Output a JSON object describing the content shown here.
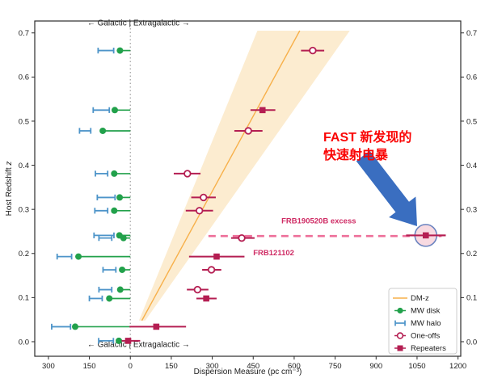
{
  "chart_data": {
    "type": "scatter",
    "title": "",
    "xlabel": "Dispersion Measure (pc cm⁻³)",
    "ylabel_main": "Host Redshift ",
    "ylabel_italic": "z",
    "xlim": [
      -350,
      1210
    ],
    "ylim": [
      -0.033,
      0.727
    ],
    "x_ticks": [
      {
        "value": -300,
        "label": "300"
      },
      {
        "value": -150,
        "label": "150"
      },
      {
        "value": 0,
        "label": "0"
      },
      {
        "value": 150,
        "label": "150"
      },
      {
        "value": 300,
        "label": "300"
      },
      {
        "value": 450,
        "label": "450"
      },
      {
        "value": 600,
        "label": "600"
      },
      {
        "value": 750,
        "label": "750"
      },
      {
        "value": 900,
        "label": "900"
      },
      {
        "value": 1050,
        "label": "1050"
      },
      {
        "value": 1200,
        "label": "1200"
      }
    ],
    "y_ticks": [
      {
        "value": 0.0,
        "label": "0.0"
      },
      {
        "value": 0.1,
        "label": "0.1"
      },
      {
        "value": 0.2,
        "label": "0.2"
      },
      {
        "value": 0.3,
        "label": "0.3"
      },
      {
        "value": 0.4,
        "label": "0.4"
      },
      {
        "value": 0.5,
        "label": "0.5"
      },
      {
        "value": 0.6,
        "label": "0.6"
      },
      {
        "value": 0.7,
        "label": "0.7"
      }
    ],
    "grid": false,
    "region_annotation": {
      "text": "←  Galactic | Extragalactic  →",
      "x_dm": 30,
      "top_z": 0.717,
      "bottom_z": -0.012
    },
    "divider_line": {
      "x_dm": 0,
      "style": "dotted",
      "color": "#9e9e9e"
    },
    "dm_z_relation": {
      "center_slope_dm_per_z": 880,
      "band_low_slope": 660,
      "band_high_slope": 1140,
      "z_range": [
        0.048,
        0.705
      ],
      "line_color": "#f7b04a",
      "band_color": "#fcecd0"
    },
    "dashed_line": {
      "z": 0.2395,
      "dm_start": 286,
      "dm_end": 1140,
      "color": "#ed6f9a",
      "label": "FRB190520B excess",
      "label_dm": 690,
      "label_z": 0.268
    },
    "point_labels": [
      {
        "text": "FRB121102",
        "dm": 450,
        "z": 0.196,
        "anchor": "start"
      }
    ],
    "frbs": [
      {
        "z": 0.66,
        "halo": [
          -118,
          -61
        ],
        "disk": -38,
        "egal": {
          "dm": 668,
          "lo": 625,
          "hi": 710,
          "kind": "oneoff"
        }
      },
      {
        "z": 0.525,
        "halo": [
          -136,
          -77
        ],
        "disk": -57,
        "egal": {
          "dm": 484,
          "lo": 440,
          "hi": 531,
          "kind": "repeater"
        }
      },
      {
        "z": 0.478,
        "halo": [
          -186,
          -145
        ],
        "disk": -101,
        "egal": {
          "dm": 432,
          "lo": 381,
          "hi": 484,
          "kind": "oneoff"
        }
      },
      {
        "z": 0.381,
        "halo": [
          -128,
          -83
        ],
        "disk": -59,
        "egal": {
          "dm": 209,
          "lo": 159,
          "hi": 257,
          "kind": "oneoff"
        }
      },
      {
        "z": 0.327,
        "halo": [
          -121,
          -56
        ],
        "disk": -39,
        "egal": {
          "dm": 268,
          "lo": 223,
          "hi": 313,
          "kind": "oneoff"
        }
      },
      {
        "z": 0.297,
        "halo": [
          -130,
          -83
        ],
        "disk": -59,
        "egal": {
          "dm": 253,
          "lo": 203,
          "hi": 303,
          "kind": "oneoff"
        }
      },
      {
        "z": 0.241,
        "halo": [
          -133,
          -60
        ],
        "disk": -40,
        "egal": {
          "dm": 1082,
          "lo": 1010,
          "hi": 1155,
          "kind": "repeater",
          "circled": true,
          "name": "FRB190520B"
        }
      },
      {
        "z": 0.235,
        "halo": [
          -115,
          -68
        ],
        "disk": -25,
        "egal": {
          "dm": 408,
          "lo": 369,
          "hi": 455,
          "kind": "oneoff"
        }
      },
      {
        "z": 0.193,
        "halo": [
          -268,
          -215
        ],
        "disk": -190,
        "egal": {
          "dm": 316,
          "lo": 215,
          "hi": 418,
          "kind": "repeater",
          "name": "FRB121102"
        }
      },
      {
        "z": 0.163,
        "halo": [
          -100,
          -53
        ],
        "disk": -30,
        "egal": {
          "dm": 297,
          "lo": 263,
          "hi": 333,
          "kind": "oneoff"
        }
      },
      {
        "z": 0.118,
        "halo": [
          -115,
          -68
        ],
        "disk": -37,
        "egal": {
          "dm": 246,
          "lo": 207,
          "hi": 286,
          "kind": "oneoff"
        }
      },
      {
        "z": 0.098,
        "halo": [
          -150,
          -103
        ],
        "disk": -77,
        "egal": {
          "dm": 278,
          "lo": 242,
          "hi": 316,
          "kind": "repeater"
        }
      },
      {
        "z": 0.034,
        "halo": [
          -288,
          -219
        ],
        "disk": -202,
        "egal": {
          "dm": 95,
          "lo": -3,
          "hi": 204,
          "kind": "repeater"
        }
      },
      {
        "z": 0.002,
        "halo": [
          -116,
          -62
        ],
        "disk": -42,
        "egal": {
          "dm": -8,
          "lo": -32,
          "hi": 36,
          "kind": "repeater"
        }
      }
    ],
    "legend": {
      "position": "lower right",
      "entries": [
        {
          "label": "DM-z",
          "type": "line"
        },
        {
          "label": "MW disk",
          "type": "disk"
        },
        {
          "label": "MW halo",
          "type": "halo"
        },
        {
          "label": "One-offs",
          "type": "oneoff"
        },
        {
          "label": "Repeaters",
          "type": "repeater"
        }
      ]
    },
    "colors": {
      "disk_green": "#22a14b",
      "halo_blue": "#4d94c9",
      "crimson": "#b41e52",
      "label_crimson": "#cf2b64",
      "axis": "#2b2b2b",
      "highlight_fill": "#f7d6de",
      "highlight_edge": "#6b84c0"
    }
  },
  "overlay": {
    "cn_line1": "FAST 新发现的",
    "cn_line2": "快速射电暴",
    "text_color": "#fa0505",
    "arrow_color": "#3a6ec0"
  }
}
